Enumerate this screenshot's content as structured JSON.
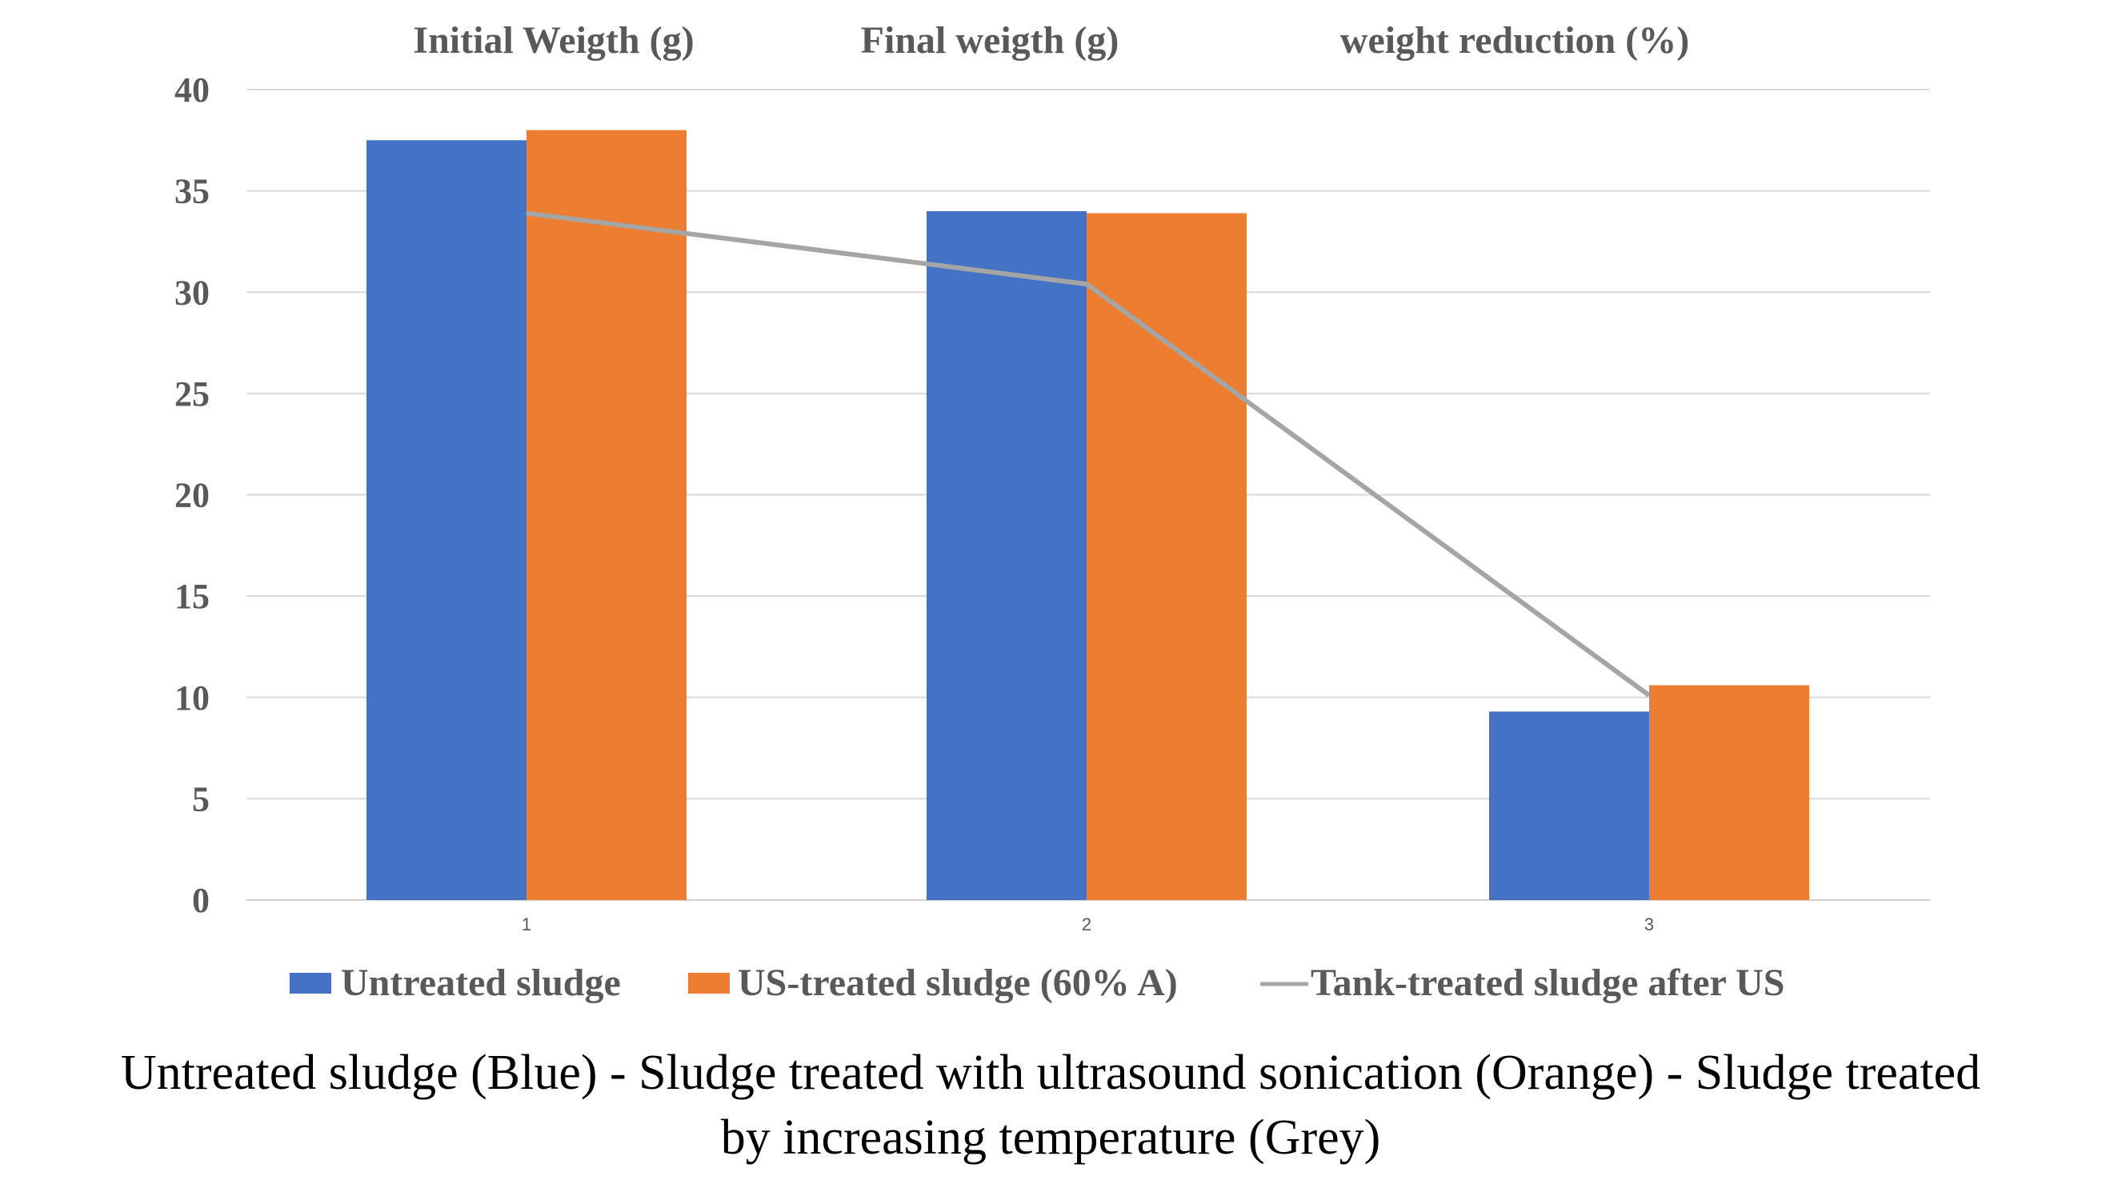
{
  "chart_data": {
    "type": "bar",
    "categories": [
      "1",
      "2",
      "3"
    ],
    "column_headers": [
      "Initial Weigth (g)",
      "Final weigth (g)",
      "weight reduction (%)"
    ],
    "series": [
      {
        "name": "Untreated sludge",
        "type": "bar",
        "color": "#4472c4",
        "values": [
          37.5,
          34.0,
          9.3
        ]
      },
      {
        "name": "US-treated sludge (60% A)",
        "type": "bar",
        "color": "#ed7d31",
        "values": [
          38.0,
          33.9,
          10.6
        ]
      },
      {
        "name": "Tank-treated sludge after US",
        "type": "line",
        "color": "#a5a5a5",
        "values": [
          33.9,
          30.4,
          10.1
        ]
      }
    ],
    "yticks": [
      "0",
      "5",
      "10",
      "15",
      "20",
      "25",
      "30",
      "35",
      "40"
    ],
    "ylim": [
      0,
      40
    ],
    "grid": true,
    "legend_position": "bottom",
    "caption_lines": [
      "Untreated sludge (Blue) - Sludge treated with ultrasound sonication (Orange) - Sludge treated",
      "by increasing temperature (Grey)"
    ]
  }
}
